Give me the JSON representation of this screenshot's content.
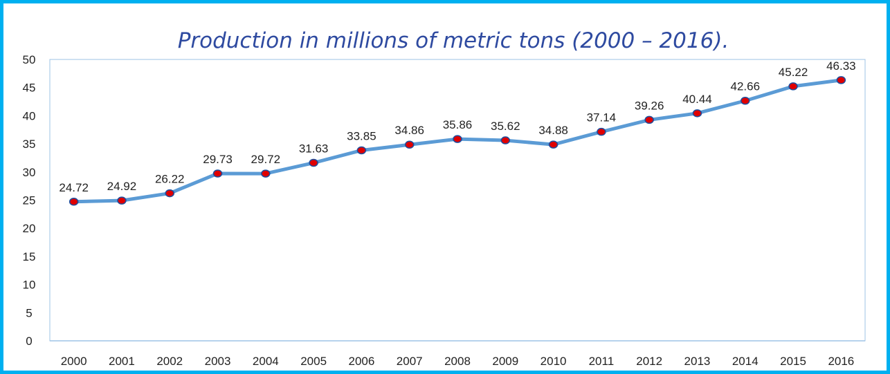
{
  "colors": {
    "frame": "#00b0f0",
    "title": "#2e4aa0",
    "line": "#5b9bd5",
    "marker_fill": "#e00000",
    "marker_stroke": "#1f4e9e",
    "axis": "#9dc3e6"
  },
  "chart_data": {
    "type": "line",
    "title": "Production in millions of metric tons (2000   – 2016).",
    "xlabel": "",
    "ylabel": "",
    "categories": [
      "2000",
      "2001",
      "2002",
      "2003",
      "2004",
      "2005",
      "2006",
      "2007",
      "2008",
      "2009",
      "2010",
      "2011",
      "2012",
      "2013",
      "2014",
      "2015",
      "2016"
    ],
    "series": [
      {
        "values": [
          24.72,
          24.92,
          26.22,
          29.73,
          29.72,
          31.63,
          33.85,
          34.86,
          35.86,
          35.62,
          34.88,
          37.14,
          39.26,
          40.44,
          42.66,
          45.22,
          46.33
        ]
      }
    ],
    "data_labels": [
      "24.72",
      "24.92",
      "26.22",
      "29.73",
      "29.72",
      "31.63",
      "33.85",
      "34.86",
      "35.86",
      "35.62",
      "34.88",
      "37.14",
      "39.26",
      "40.44",
      "42.66",
      "45.22",
      "46.33"
    ],
    "ylim": [
      0,
      50
    ],
    "yticks": [
      "0",
      "5",
      "10",
      "15",
      "20",
      "25",
      "30",
      "35",
      "40",
      "45",
      "50"
    ],
    "grid": false,
    "legend": "none"
  }
}
